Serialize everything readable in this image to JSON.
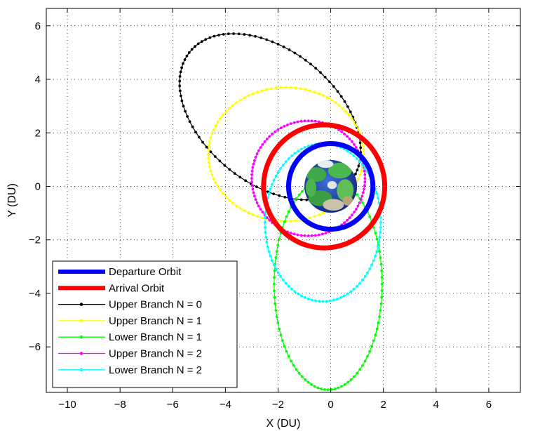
{
  "chart_data": {
    "type": "line",
    "title": "",
    "xlabel": "X (DU)",
    "ylabel": "Y (DU)",
    "xlim": [
      -10.8,
      7.2
    ],
    "ylim": [
      -7.7,
      6.65
    ],
    "xticks": [
      -10,
      -8,
      -6,
      -4,
      -2,
      0,
      2,
      4,
      6
    ],
    "yticks": [
      -6,
      -4,
      -2,
      0,
      2,
      4,
      6
    ],
    "grid": true,
    "legend_position": "bottom-left",
    "earth": {
      "center": [
        0,
        0
      ],
      "radius": 1.0
    },
    "series": [
      {
        "name": "Departure Orbit",
        "kind": "circle",
        "center": [
          0,
          0
        ],
        "radius": 1.6,
        "color": "#0000ff",
        "width": "thick",
        "markers": false
      },
      {
        "name": "Arrival Orbit",
        "kind": "circle",
        "center": [
          -0.25,
          0
        ],
        "radius": 2.3,
        "color": "#ff0000",
        "width": "thick",
        "markers": false
      },
      {
        "name": "Upper Branch N = 0",
        "kind": "ellipse",
        "center": [
          -2.3,
          2.6
        ],
        "axes": [
          3.9,
          2.5
        ],
        "rotation_deg": 142,
        "color": "#000000",
        "width": "thin",
        "markers": true
      },
      {
        "name": "Upper Branch N = 1",
        "kind": "ellipse",
        "center": [
          -1.7,
          1.2
        ],
        "axes": [
          2.95,
          2.5
        ],
        "rotation_deg": 0,
        "color": "#ffff00",
        "width": "thin",
        "markers": true
      },
      {
        "name": "Lower Branch N = 1",
        "kind": "ellipse",
        "center": [
          -0.1,
          -3.65
        ],
        "axes": [
          2.05,
          3.95
        ],
        "rotation_deg": 0,
        "color": "#00ff00",
        "width": "thin",
        "markers": true
      },
      {
        "name": "Upper Branch N = 2",
        "kind": "ellipse",
        "center": [
          -0.85,
          0.3
        ],
        "axes": [
          2.15,
          2.15
        ],
        "rotation_deg": 0,
        "color": "#ff00ff",
        "width": "thin",
        "markers": true
      },
      {
        "name": "Lower Branch N = 2",
        "kind": "ellipse",
        "center": [
          -0.3,
          -1.35
        ],
        "axes": [
          2.2,
          2.95
        ],
        "rotation_deg": 0,
        "color": "#00ffff",
        "width": "thin",
        "markers": true
      }
    ]
  }
}
